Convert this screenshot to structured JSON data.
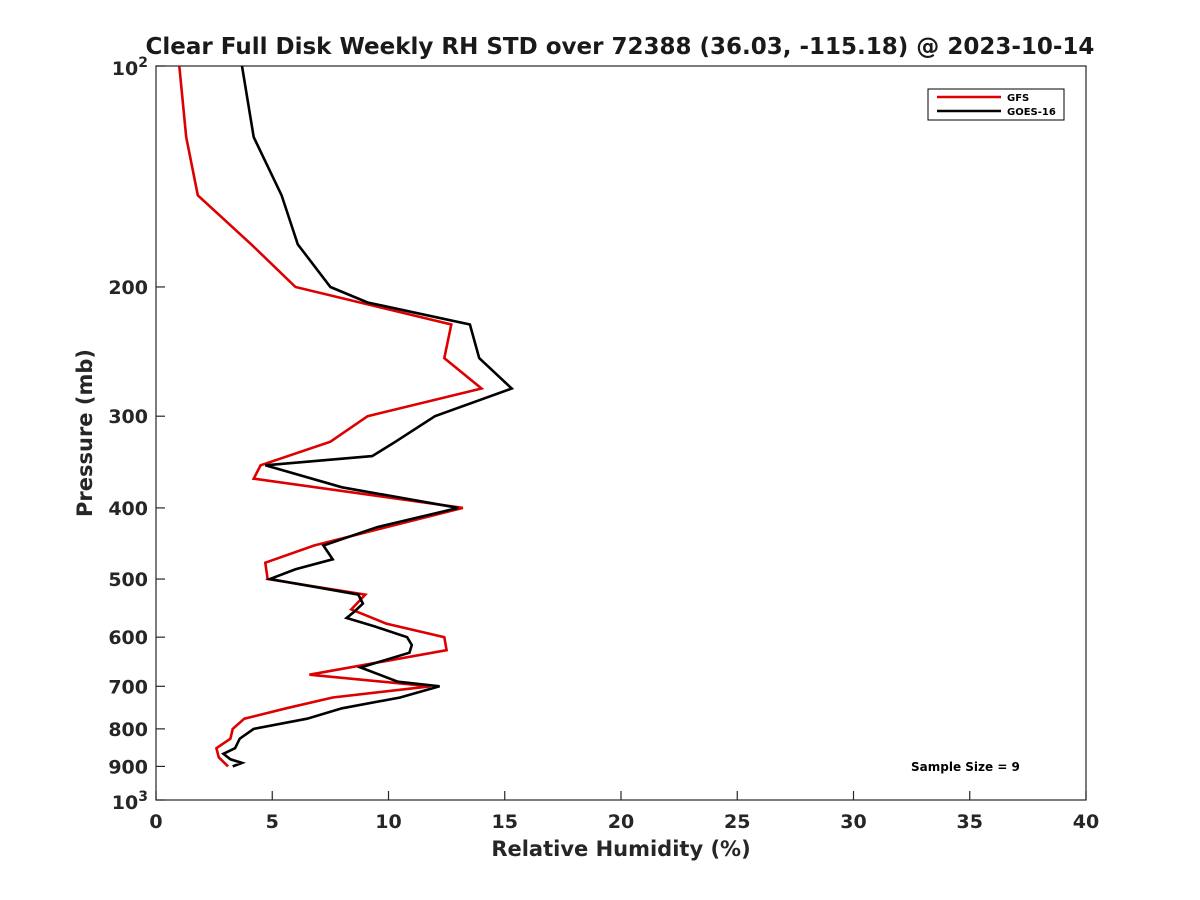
{
  "chart_data": {
    "type": "line",
    "title": "Clear Full Disk Weekly RH STD over 72388 (36.03, -115.18) @ 2023-10-14",
    "xlabel": "Relative Humidity (%)",
    "ylabel": "Pressure (mb)",
    "xlim": [
      0,
      40
    ],
    "ylim": [
      100,
      1000
    ],
    "y_scale": "log",
    "y_reversed": true,
    "x_ticks": [
      "0",
      "5",
      "10",
      "15",
      "20",
      "25",
      "30",
      "35",
      "40"
    ],
    "y_ticks": [
      {
        "value": 100,
        "base": "10",
        "exp": "2"
      },
      {
        "value": 200,
        "label": "200"
      },
      {
        "value": 300,
        "label": "300"
      },
      {
        "value": 400,
        "label": "400"
      },
      {
        "value": 500,
        "label": "500"
      },
      {
        "value": 600,
        "label": "600"
      },
      {
        "value": 700,
        "label": "700"
      },
      {
        "value": 800,
        "label": "800"
      },
      {
        "value": 900,
        "label": "900"
      },
      {
        "value": 1000,
        "base": "10",
        "exp": "3"
      }
    ],
    "legend_position": "top-right",
    "grid": false,
    "series": [
      {
        "name": "GFS",
        "color": "#dd0000",
        "points": [
          [
            1.0,
            100
          ],
          [
            1.3,
            125
          ],
          [
            1.8,
            150
          ],
          [
            4.1,
            175
          ],
          [
            6.0,
            200
          ],
          [
            12.7,
            225
          ],
          [
            12.4,
            250
          ],
          [
            14.0,
            275
          ],
          [
            9.1,
            300
          ],
          [
            7.5,
            325
          ],
          [
            4.5,
            350
          ],
          [
            4.2,
            365
          ],
          [
            13.2,
            400
          ],
          [
            6.8,
            450
          ],
          [
            4.7,
            475
          ],
          [
            4.8,
            500
          ],
          [
            9.0,
            525
          ],
          [
            8.4,
            550
          ],
          [
            9.9,
            575
          ],
          [
            12.4,
            600
          ],
          [
            12.5,
            625
          ],
          [
            6.6,
            675
          ],
          [
            11.8,
            700
          ],
          [
            7.6,
            725
          ],
          [
            5.6,
            750
          ],
          [
            3.8,
            775
          ],
          [
            3.3,
            800
          ],
          [
            3.2,
            825
          ],
          [
            2.6,
            850
          ],
          [
            2.7,
            875
          ],
          [
            3.1,
            900
          ]
        ]
      },
      {
        "name": "GOES-16",
        "color": "#000000",
        "points": [
          [
            3.7,
            100
          ],
          [
            4.2,
            125
          ],
          [
            5.4,
            150
          ],
          [
            6.1,
            175
          ],
          [
            7.5,
            200
          ],
          [
            9.1,
            210
          ],
          [
            13.5,
            225
          ],
          [
            13.9,
            250
          ],
          [
            15.3,
            275
          ],
          [
            12.0,
            300
          ],
          [
            10.3,
            325
          ],
          [
            9.3,
            340
          ],
          [
            4.7,
            350
          ],
          [
            8.0,
            375
          ],
          [
            13.0,
            400
          ],
          [
            9.5,
            425
          ],
          [
            7.2,
            450
          ],
          [
            7.6,
            470
          ],
          [
            6.0,
            485
          ],
          [
            4.9,
            500
          ],
          [
            8.7,
            525
          ],
          [
            8.9,
            540
          ],
          [
            8.5,
            555
          ],
          [
            8.2,
            565
          ],
          [
            9.4,
            580
          ],
          [
            10.8,
            600
          ],
          [
            11.0,
            615
          ],
          [
            10.9,
            630
          ],
          [
            8.8,
            660
          ],
          [
            10.4,
            690
          ],
          [
            12.2,
            700
          ],
          [
            10.5,
            725
          ],
          [
            8.0,
            750
          ],
          [
            6.5,
            775
          ],
          [
            4.2,
            800
          ],
          [
            3.6,
            825
          ],
          [
            3.4,
            850
          ],
          [
            2.9,
            865
          ],
          [
            3.2,
            880
          ],
          [
            3.7,
            890
          ],
          [
            3.3,
            900
          ]
        ]
      }
    ],
    "annotation": "Sample Size = 9"
  }
}
